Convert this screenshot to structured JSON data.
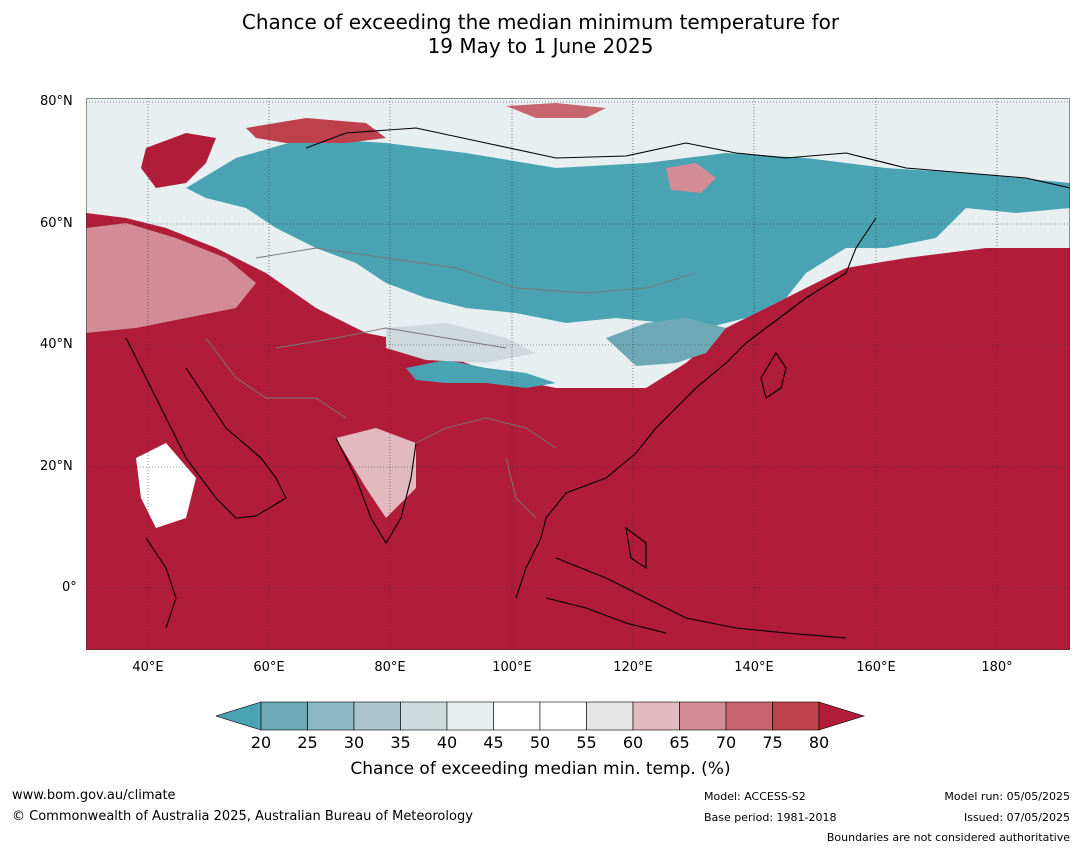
{
  "title": {
    "line1": "Chance of exceeding the median minimum temperature for",
    "line2": "19 May to 1 June 2025"
  },
  "map": {
    "latitude_labels": [
      "80°N",
      "60°N",
      "40°N",
      "20°N",
      "0°"
    ],
    "longitude_labels": [
      "40°E",
      "60°E",
      "80°E",
      "100°E",
      "120°E",
      "140°E",
      "160°E",
      "180°"
    ],
    "colors": {
      "below_20": "#49a3b3",
      "high_80": "#b11c38",
      "mid_white": "#ffffff",
      "coast": "#000000",
      "border": "#777777"
    }
  },
  "colorbar": {
    "ticks": [
      "20",
      "25",
      "30",
      "35",
      "40",
      "45",
      "50",
      "55",
      "60",
      "65",
      "70",
      "75",
      "80"
    ],
    "colors": [
      "#49a3b3",
      "#6ca9b5",
      "#8ab7c2",
      "#abc5ca",
      "#d0dadd",
      "#e7eff1",
      "#ffffff",
      "#ffffff",
      "#e7e6e6",
      "#e1b9bf",
      "#d38b95",
      "#c7656f",
      "#bd414d",
      "#b11c38"
    ],
    "label": "Chance of exceeding median min. temp. (%)"
  },
  "footer": {
    "url": "www.bom.gov.au/climate",
    "copyright": "© Commonwealth of Australia 2025, Australian Bureau of Meteorology",
    "model": "Model: ACCESS-S2",
    "base_period": "Base period: 1981-2018",
    "model_run": "Model run: 05/05/2025",
    "issued": "Issued: 07/05/2025",
    "disclaimer": "Boundaries are not considered authoritative"
  }
}
